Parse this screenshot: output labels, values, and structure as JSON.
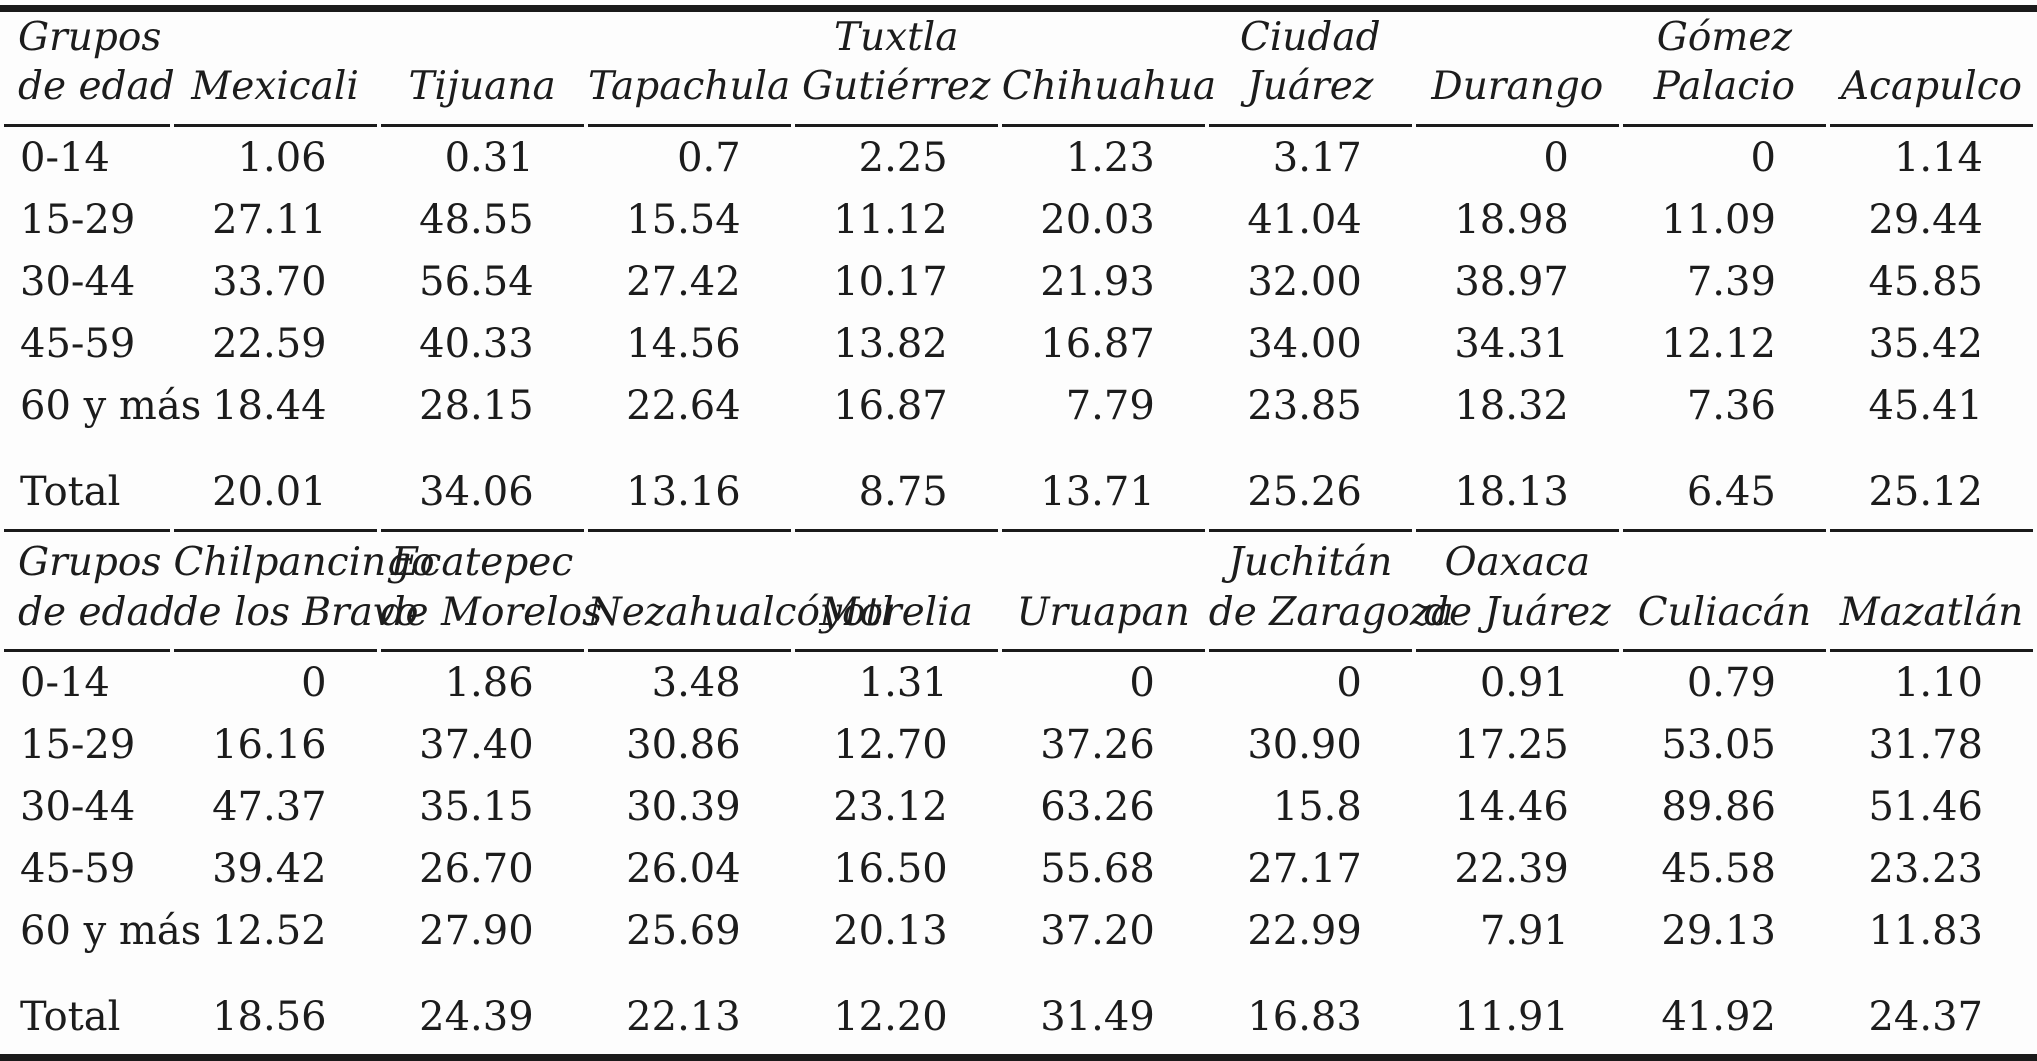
{
  "page": {
    "background": "#fdfdfd",
    "text_color": "#1c1c1c",
    "rule_color": "#1b1b1b"
  },
  "tables": [
    {
      "header": {
        "label": {
          "lines": [
            "Grupos",
            "de edad"
          ]
        },
        "columns": [
          {
            "lines": [
              "Mexicali"
            ]
          },
          {
            "lines": [
              "Tijuana"
            ]
          },
          {
            "lines": [
              "Tapachula"
            ]
          },
          {
            "lines": [
              "Tuxtla",
              "Gutiérrez"
            ]
          },
          {
            "lines": [
              "Chihuahua"
            ]
          },
          {
            "lines": [
              "Ciudad",
              "Juárez"
            ]
          },
          {
            "lines": [
              "Durango"
            ]
          },
          {
            "lines": [
              "Gómez",
              "Palacio"
            ]
          },
          {
            "lines": [
              "Acapulco"
            ]
          }
        ]
      },
      "rows": [
        {
          "label": "0-14",
          "is_total": false,
          "values": [
            "1.06",
            "0.31",
            "0.7",
            "2.25",
            "1.23",
            "3.17",
            "0",
            "0",
            "1.14"
          ]
        },
        {
          "label": "15-29",
          "is_total": false,
          "values": [
            "27.11",
            "48.55",
            "15.54",
            "11.12",
            "20.03",
            "41.04",
            "18.98",
            "11.09",
            "29.44"
          ]
        },
        {
          "label": "30-44",
          "is_total": false,
          "values": [
            "33.70",
            "56.54",
            "27.42",
            "10.17",
            "21.93",
            "32.00",
            "38.97",
            "7.39",
            "45.85"
          ]
        },
        {
          "label": "45-59",
          "is_total": false,
          "values": [
            "22.59",
            "40.33",
            "14.56",
            "13.82",
            "16.87",
            "34.00",
            "34.31",
            "12.12",
            "35.42"
          ]
        },
        {
          "label": "60 y más",
          "is_total": false,
          "values": [
            "18.44",
            "28.15",
            "22.64",
            "16.87",
            "7.79",
            "23.85",
            "18.32",
            "7.36",
            "45.41"
          ]
        },
        {
          "label": "Total",
          "is_total": true,
          "values": [
            "20.01",
            "34.06",
            "13.16",
            "8.75",
            "13.71",
            "25.26",
            "18.13",
            "6.45",
            "25.12"
          ]
        }
      ]
    },
    {
      "header": {
        "label": {
          "lines": [
            "Grupos",
            "de edad"
          ]
        },
        "columns": [
          {
            "lines": [
              "Chilpancingo",
              "de los Bravo"
            ]
          },
          {
            "lines": [
              "Ecatepec",
              "de Morelos"
            ]
          },
          {
            "lines": [
              "Nezahualcóyotl"
            ]
          },
          {
            "lines": [
              "Morelia"
            ]
          },
          {
            "lines": [
              "Uruapan"
            ]
          },
          {
            "lines": [
              "Juchitán",
              "de Zaragoza"
            ]
          },
          {
            "lines": [
              "Oaxaca",
              "de Juárez"
            ]
          },
          {
            "lines": [
              "Culiacán"
            ]
          },
          {
            "lines": [
              "Mazatlán"
            ]
          }
        ]
      },
      "rows": [
        {
          "label": "0-14",
          "is_total": false,
          "values": [
            "0",
            "1.86",
            "3.48",
            "1.31",
            "0",
            "0",
            "0.91",
            "0.79",
            "1.10"
          ]
        },
        {
          "label": "15-29",
          "is_total": false,
          "values": [
            "16.16",
            "37.40",
            "30.86",
            "12.70",
            "37.26",
            "30.90",
            "17.25",
            "53.05",
            "31.78"
          ]
        },
        {
          "label": "30-44",
          "is_total": false,
          "values": [
            "47.37",
            "35.15",
            "30.39",
            "23.12",
            "63.26",
            "15.8",
            "14.46",
            "89.86",
            "51.46"
          ]
        },
        {
          "label": "45-59",
          "is_total": false,
          "values": [
            "39.42",
            "26.70",
            "26.04",
            "16.50",
            "55.68",
            "27.17",
            "22.39",
            "45.58",
            "23.23"
          ]
        },
        {
          "label": "60 y más",
          "is_total": false,
          "values": [
            "12.52",
            "27.90",
            "25.69",
            "20.13",
            "37.20",
            "22.99",
            "7.91",
            "29.13",
            "11.83"
          ]
        },
        {
          "label": "Total",
          "is_total": true,
          "values": [
            "18.56",
            "24.39",
            "22.13",
            "12.20",
            "31.49",
            "16.83",
            "11.91",
            "41.92",
            "24.37"
          ]
        }
      ]
    }
  ]
}
